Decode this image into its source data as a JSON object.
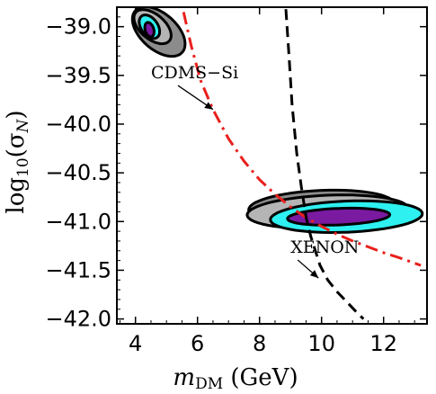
{
  "chart_data": {
    "type": "line",
    "title": "",
    "xlabel": {
      "prefix": "m",
      "subscript": "DM",
      "suffix": " (GeV)"
    },
    "ylabel": {
      "prefix": "log",
      "subscript": "10",
      "middle": "(σ",
      "subscript2": "N",
      "suffix": ")"
    },
    "xlim": [
      3.4,
      13.4
    ],
    "ylim": [
      -42.05,
      -38.8
    ],
    "x_ticks": [
      4,
      6,
      8,
      10,
      12
    ],
    "x_tick_labels": [
      "4",
      "6",
      "8",
      "10",
      "12"
    ],
    "y_ticks": [
      -39.0,
      -39.5,
      -40.0,
      -40.5,
      -41.0,
      -41.5,
      -42.0
    ],
    "y_tick_labels": [
      "−39.0",
      "−39.5",
      "−40.0",
      "−40.5",
      "−41.0",
      "−41.5",
      "−42.0"
    ],
    "grid": false,
    "series": [
      {
        "name": "CDMS−Si",
        "style": "dash-dot",
        "color": "#e8201c",
        "x": [
          5.55,
          5.8,
          6.1,
          6.5,
          7.0,
          7.5,
          8.0,
          8.5,
          9.0,
          9.5,
          10.0,
          10.5,
          11.0,
          11.5,
          12.0,
          12.5,
          13.2
        ],
        "y": [
          -38.85,
          -39.2,
          -39.55,
          -39.85,
          -40.15,
          -40.38,
          -40.57,
          -40.72,
          -40.85,
          -40.96,
          -41.05,
          -41.13,
          -41.2,
          -41.26,
          -41.32,
          -41.37,
          -41.45
        ]
      },
      {
        "name": "XENON",
        "style": "dashed",
        "color": "#000000",
        "x": [
          8.85,
          8.95,
          9.05,
          9.2,
          9.35,
          9.5,
          9.65,
          9.8,
          9.95,
          10.2,
          10.5,
          10.8,
          11.1,
          11.35
        ],
        "y": [
          -38.82,
          -39.3,
          -39.8,
          -40.3,
          -40.65,
          -40.95,
          -41.15,
          -41.3,
          -41.45,
          -41.6,
          -41.72,
          -41.82,
          -41.92,
          -42.0
        ]
      }
    ],
    "regions": [
      {
        "group": "low-mass",
        "layers": [
          {
            "level": "outer",
            "fill": "#8c8c8c",
            "cx": 4.75,
            "cy": -39.05,
            "rx": 0.85,
            "ry": 0.22,
            "tilt": -0.6
          },
          {
            "level": "middle",
            "fill": "#b5b5b5",
            "cx": 4.55,
            "cy": -39.0,
            "rx": 0.6,
            "ry": 0.15,
            "tilt": -0.6
          },
          {
            "level": "cyan",
            "fill": "#2ef0f0",
            "cx": 4.45,
            "cy": -39.0,
            "rx": 0.33,
            "ry": 0.11,
            "tilt": -0.6
          },
          {
            "level": "core",
            "fill": "#7a1aa0",
            "cx": 4.45,
            "cy": -39.03,
            "rx": 0.15,
            "ry": 0.07,
            "tilt": -0.6
          }
        ]
      },
      {
        "group": "high-mass",
        "layers": [
          {
            "level": "outer",
            "fill": "#8c8c8c",
            "cx": 10.0,
            "cy": -40.85,
            "rx": 2.35,
            "ry": 0.17,
            "tilt": 0.05
          },
          {
            "level": "middle",
            "fill": "#b5b5b5",
            "cx": 10.2,
            "cy": -40.9,
            "rx": 2.6,
            "ry": 0.17,
            "tilt": 0.05
          },
          {
            "level": "cyan",
            "fill": "#2ef0f0",
            "cx": 10.8,
            "cy": -40.95,
            "rx": 2.45,
            "ry": 0.16,
            "tilt": 0.05
          },
          {
            "level": "core",
            "fill": "#7a1aa0",
            "cx": 10.55,
            "cy": -40.95,
            "rx": 1.65,
            "ry": 0.085,
            "tilt": 0.05
          }
        ]
      }
    ],
    "annotations": [
      {
        "text": "CDMS−Si",
        "x": 4.5,
        "y": -39.53,
        "arrow_to": [
          6.5,
          -39.85
        ]
      },
      {
        "text": "XENON",
        "x": 9.0,
        "y": -41.32,
        "arrow_to": [
          9.9,
          -41.58
        ]
      }
    ]
  }
}
